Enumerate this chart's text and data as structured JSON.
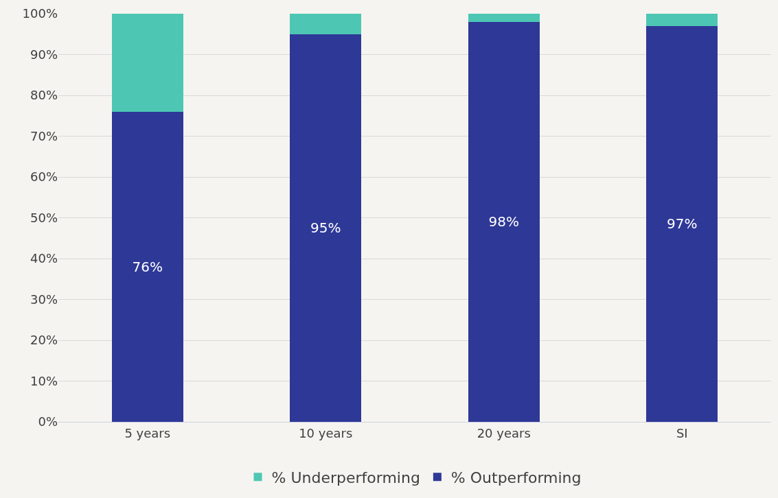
{
  "chart_data": {
    "type": "bar",
    "stacked": true,
    "categories": [
      "5 years",
      "10 years",
      "20 years",
      "SI"
    ],
    "series": [
      {
        "name": "% Outperforming",
        "color": "#2e3897",
        "values": [
          76,
          95,
          98,
          97
        ],
        "value_labels": [
          "76%",
          "95%",
          "98%",
          "97%"
        ]
      },
      {
        "name": "% Underperforming",
        "color": "#4dc7b3",
        "values": [
          24,
          5,
          2,
          3
        ]
      }
    ],
    "ylim": [
      0,
      100
    ],
    "yticks": [
      {
        "value": 0,
        "label": "0%"
      },
      {
        "value": 10,
        "label": "10%"
      },
      {
        "value": 20,
        "label": "20%"
      },
      {
        "value": 30,
        "label": "30%"
      },
      {
        "value": 40,
        "label": "40%"
      },
      {
        "value": 50,
        "label": "50%"
      },
      {
        "value": 60,
        "label": "60%"
      },
      {
        "value": 70,
        "label": "70%"
      },
      {
        "value": 80,
        "label": "80%"
      },
      {
        "value": 90,
        "label": "90%"
      },
      {
        "value": 100,
        "label": "100%"
      }
    ],
    "grid": "y",
    "legend": "bottom"
  }
}
